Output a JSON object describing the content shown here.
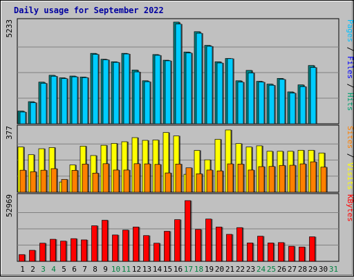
{
  "chart_data": {
    "type": "bar",
    "title": "Daily usage for September 2022",
    "days": [
      "1",
      "2",
      "3",
      "4",
      "5",
      "6",
      "7",
      "8",
      "9",
      "10",
      "11",
      "12",
      "13",
      "14",
      "15",
      "16",
      "17",
      "18",
      "19",
      "20",
      "21",
      "22",
      "23",
      "24",
      "25",
      "26",
      "27",
      "28",
      "29",
      "30",
      "31"
    ],
    "weekend_days": [
      "3",
      "4",
      "10",
      "11",
      "17",
      "18",
      "24",
      "25",
      "31"
    ],
    "panels": [
      {
        "id": "hits-files-pages",
        "max_label": "5233",
        "ymax": 5233,
        "side_labels": [
          {
            "text": "Pages",
            "color": "#00c0ff"
          },
          {
            "text": " / ",
            "color": "#000000"
          },
          {
            "text": "Files",
            "color": "#0000ff"
          },
          {
            "text": " / ",
            "color": "#000000"
          },
          {
            "text": "Hits",
            "color": "#00a070"
          }
        ],
        "series": [
          {
            "name": "Hits",
            "color": "#008080",
            "values": [
              650,
              1130,
              2130,
              2480,
              2350,
              2440,
              2390,
              3600,
              3300,
              3170,
              3600,
              2750,
              2200,
              3540,
              3250,
              5200,
              3670,
              4710,
              4010,
              3170,
              3340,
              2200,
              2730,
              2170,
              2030,
              2320,
              1630,
              1990,
              2980,
              null,
              null
            ]
          },
          {
            "name": "Files",
            "color": "#00ccff",
            "values": [
              600,
              1080,
              2070,
              2430,
              2310,
              2400,
              2360,
              3550,
              3270,
              3140,
              3570,
              2650,
              2150,
              3500,
              3220,
              5100,
              3620,
              4630,
              3960,
              3110,
              3330,
              2130,
              2600,
              2130,
              1970,
              2270,
              1570,
              1900,
              2880,
              null,
              null
            ]
          }
        ]
      },
      {
        "id": "visits-sites",
        "max_label": "377",
        "ymax": 377,
        "side_labels": [
          {
            "text": "Sites",
            "color": "#ff8000"
          },
          {
            "text": " / ",
            "color": "#000000"
          },
          {
            "text": "Visits",
            "color": "#ffff00"
          }
        ],
        "series": [
          {
            "name": "Visits",
            "color": "#ffff00",
            "values": [
              265,
              220,
              255,
              262,
              60,
              160,
              270,
              215,
              275,
              286,
              296,
              320,
              304,
              306,
              350,
              330,
              105,
              245,
              190,
              310,
              365,
              285,
              265,
              272,
              240,
              240,
              240,
              246,
              246,
              230,
              null
            ]
          },
          {
            "name": "Sites",
            "color": "#ff8000",
            "values": [
              129,
              120,
              129,
              138,
              75,
              128,
              165,
              112,
              167,
              130,
              130,
              167,
              166,
              163,
              113,
              165,
              143,
              108,
              130,
              125,
              166,
              165,
              130,
              150,
              151,
              157,
              158,
              166,
              178,
              147,
              null
            ]
          }
        ]
      },
      {
        "id": "kbytes",
        "max_label": "52969",
        "ymax": 52969,
        "side_labels": [
          {
            "text": "KBytes",
            "color": "#ff0000"
          }
        ],
        "series": [
          {
            "name": "KBytes",
            "color": "#ff0000",
            "values": [
              5500,
              9000,
              14800,
              18000,
              16500,
              18500,
              17500,
              29000,
              33500,
              21500,
              25500,
              28000,
              21000,
              14800,
              24500,
              34000,
              49500,
              26000,
              34500,
              28000,
              22000,
              27500,
              15000,
              20500,
              15000,
              15300,
              12300,
              11700,
              20000,
              null,
              null
            ]
          }
        ]
      }
    ]
  }
}
